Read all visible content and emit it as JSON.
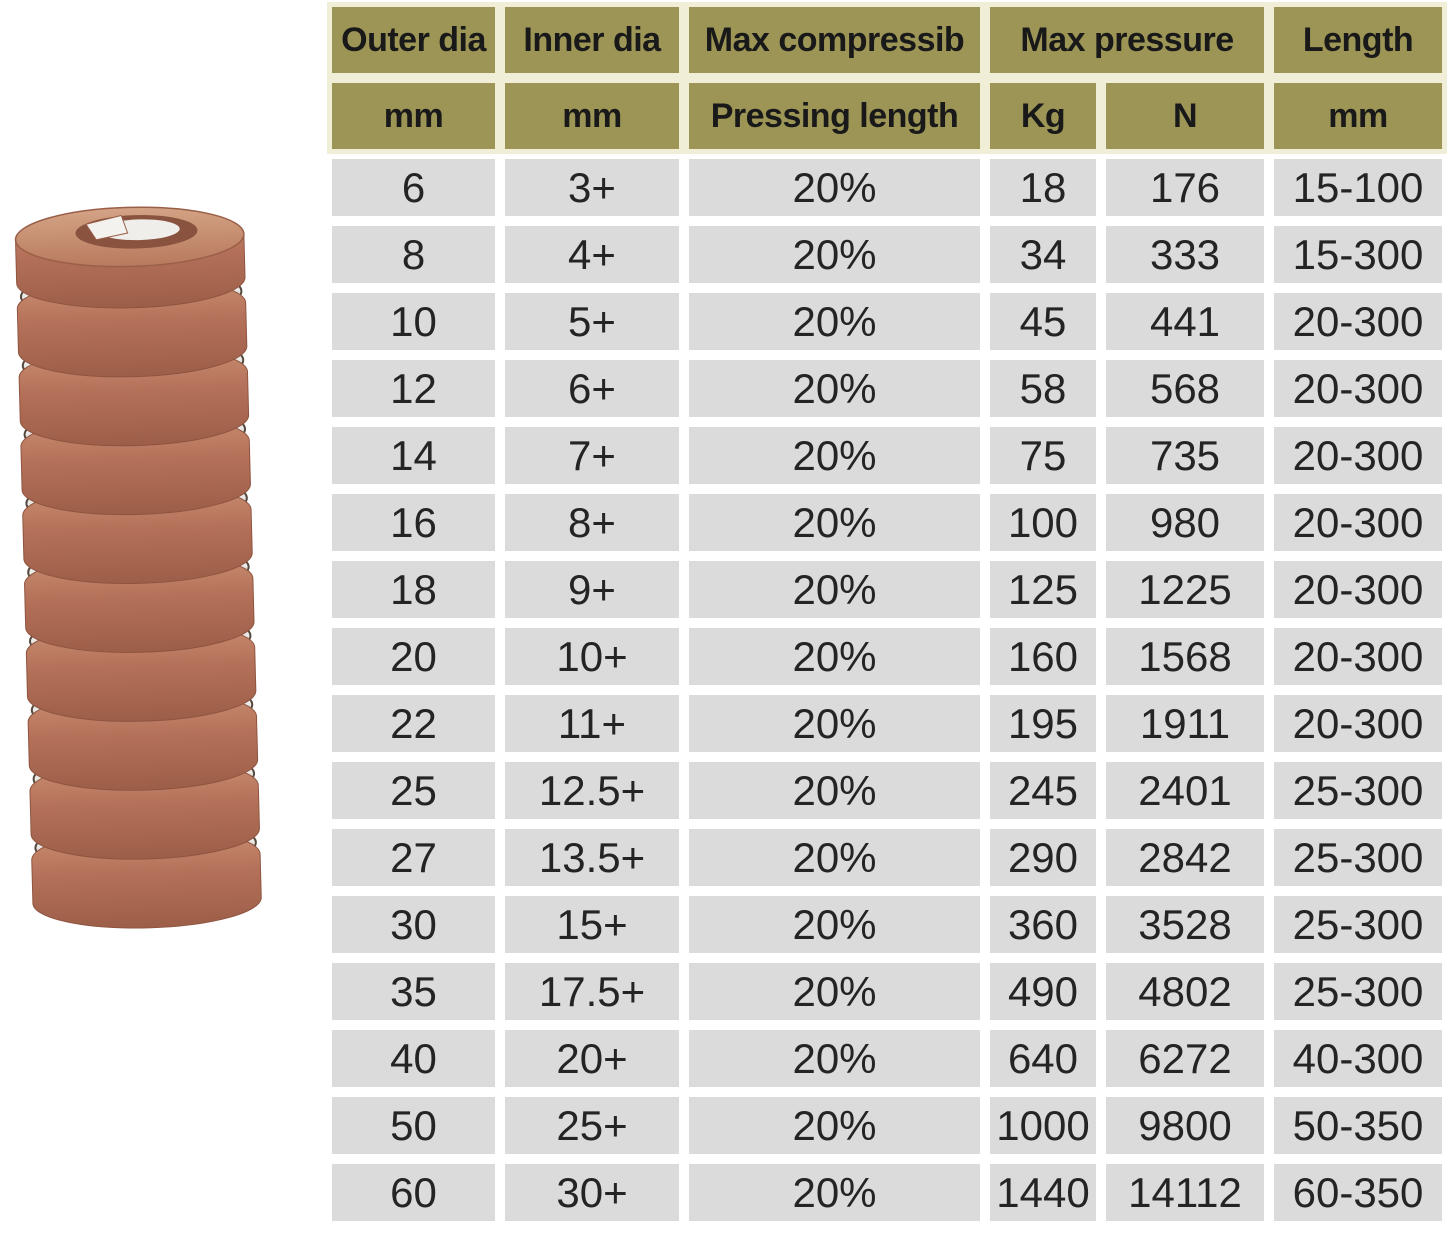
{
  "image": {
    "name": "brown-die-spring-photo",
    "description": "Brown coiled die mould compression spring with metallic inner coil",
    "colors": {
      "coil_brown": "#b47059",
      "coil_brown_light": "#cf997c",
      "coil_brown_dark": "#8e5440",
      "metal_silver": "#e9e8e4",
      "metal_shadow": "#6f655e"
    }
  },
  "table": {
    "header_row1": [
      {
        "label": "Outer dia",
        "colspan": 1
      },
      {
        "label": "Inner dia",
        "colspan": 1
      },
      {
        "label": "Max compressib",
        "colspan": 1
      },
      {
        "label": "Max pressure",
        "colspan": 2
      },
      {
        "label": "Length",
        "colspan": 1
      }
    ],
    "header_row2": [
      "mm",
      "mm",
      "Pressing length",
      "Kg",
      "N",
      "mm"
    ],
    "rows": [
      [
        "6",
        "3+",
        "20%",
        "18",
        "176",
        "15-100"
      ],
      [
        "8",
        "4+",
        "20%",
        "34",
        "333",
        "15-300"
      ],
      [
        "10",
        "5+",
        "20%",
        "45",
        "441",
        "20-300"
      ],
      [
        "12",
        "6+",
        "20%",
        "58",
        "568",
        "20-300"
      ],
      [
        "14",
        "7+",
        "20%",
        "75",
        "735",
        "20-300"
      ],
      [
        "16",
        "8+",
        "20%",
        "100",
        "980",
        "20-300"
      ],
      [
        "18",
        "9+",
        "20%",
        "125",
        "1225",
        "20-300"
      ],
      [
        "20",
        "10+",
        "20%",
        "160",
        "1568",
        "20-300"
      ],
      [
        "22",
        "11+",
        "20%",
        "195",
        "1911",
        "20-300"
      ],
      [
        "25",
        "12.5+",
        "20%",
        "245",
        "2401",
        "25-300"
      ],
      [
        "27",
        "13.5+",
        "20%",
        "290",
        "2842",
        "25-300"
      ],
      [
        "30",
        "15+",
        "20%",
        "360",
        "3528",
        "25-300"
      ],
      [
        "35",
        "17.5+",
        "20%",
        "490",
        "4802",
        "25-300"
      ],
      [
        "40",
        "20+",
        "20%",
        "640",
        "6272",
        "40-300"
      ],
      [
        "50",
        "25+",
        "20%",
        "1000",
        "9800",
        "50-350"
      ],
      [
        "60",
        "30+",
        "20%",
        "1440",
        "14112",
        "60-350"
      ]
    ],
    "colors": {
      "header_bg": "#9c9556",
      "header_gap": "#f0eed7",
      "row_bg": "#dbdbdb",
      "row_gap": "#ffffff",
      "text": "#242424"
    }
  }
}
